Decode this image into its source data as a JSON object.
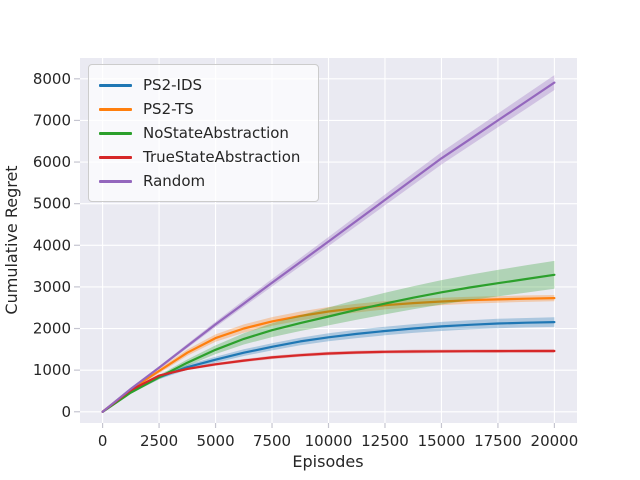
{
  "style": {
    "figure_bg": "#ffffff",
    "axes_bg": "#eaeaf2",
    "grid_color": "#ffffff",
    "text_color": "#262626",
    "tick_mark_color": "#c5c5d0",
    "legend_border": "#cccccc"
  },
  "chart_data": {
    "type": "line",
    "title": "",
    "xlabel": "Episodes",
    "ylabel": "Cumulative Regret",
    "xlim": [
      -1000,
      21000
    ],
    "ylim": [
      -270,
      8500
    ],
    "grid": true,
    "legend_position": "upper left",
    "xticks": [
      0,
      2500,
      5000,
      7500,
      10000,
      12500,
      15000,
      17500,
      20000
    ],
    "yticks": [
      0,
      1000,
      2000,
      3000,
      4000,
      5000,
      6000,
      7000,
      8000
    ],
    "x": [
      0,
      1250,
      2500,
      3750,
      5000,
      6250,
      7500,
      8750,
      10000,
      11250,
      12500,
      13750,
      15000,
      16250,
      17500,
      18750,
      20000
    ],
    "series": [
      {
        "name": "PS2-IDS",
        "color": "#1f77b4",
        "values": [
          0,
          480,
          830,
          1070,
          1250,
          1420,
          1560,
          1690,
          1790,
          1870,
          1940,
          2000,
          2050,
          2090,
          2120,
          2140,
          2155
        ],
        "band": [
          0,
          30,
          50,
          60,
          70,
          80,
          85,
          90,
          95,
          100,
          103,
          106,
          109,
          111,
          113,
          114,
          115
        ]
      },
      {
        "name": "PS2-TS",
        "color": "#ff7f0e",
        "values": [
          0,
          540,
          980,
          1420,
          1770,
          2000,
          2170,
          2300,
          2410,
          2490,
          2560,
          2610,
          2650,
          2680,
          2700,
          2717,
          2730
        ],
        "band": [
          0,
          30,
          55,
          75,
          90,
          100,
          105,
          108,
          108,
          104,
          100,
          95,
          90,
          85,
          80,
          78,
          75
        ]
      },
      {
        "name": "NoStateAbstraction",
        "color": "#2ca02c",
        "values": [
          0,
          460,
          830,
          1180,
          1490,
          1750,
          1960,
          2130,
          2290,
          2450,
          2600,
          2740,
          2870,
          2985,
          3090,
          3190,
          3290
        ],
        "band": [
          0,
          25,
          50,
          75,
          105,
          135,
          165,
          190,
          215,
          240,
          260,
          278,
          293,
          307,
          318,
          328,
          335
        ]
      },
      {
        "name": "TrueStateAbstraction",
        "color": "#d62728",
        "values": [
          0,
          520,
          870,
          1030,
          1140,
          1230,
          1305,
          1360,
          1400,
          1425,
          1440,
          1448,
          1453,
          1456,
          1458,
          1459,
          1460
        ],
        "band": [
          0,
          15,
          25,
          30,
          34,
          37,
          39,
          40,
          40,
          40,
          40,
          40,
          40,
          40,
          40,
          40,
          40
        ]
      },
      {
        "name": "Random",
        "color": "#9467bd",
        "values": [
          0,
          550,
          1060,
          1580,
          2100,
          2600,
          3100,
          3595,
          4090,
          4590,
          5090,
          5590,
          6090,
          6545,
          7000,
          7455,
          7910
        ],
        "band": [
          0,
          20,
          35,
          50,
          65,
          78,
          90,
          100,
          110,
          120,
          130,
          140,
          150,
          158,
          166,
          173,
          180
        ]
      }
    ]
  }
}
